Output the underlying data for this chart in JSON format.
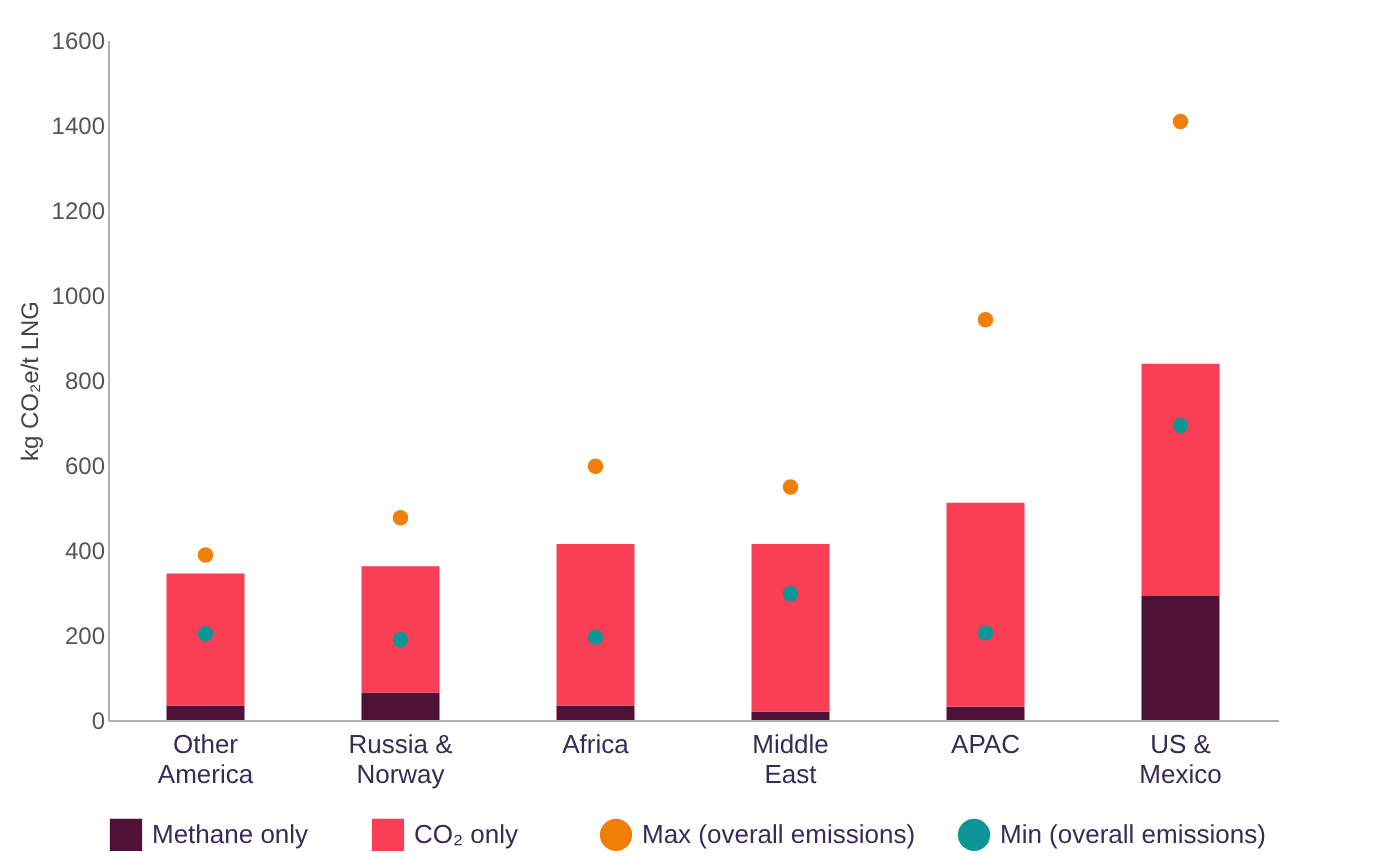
{
  "chart_data": {
    "type": "bar",
    "stacked": true,
    "ylabel": "kg CO₂e/t LNG",
    "categories": [
      "Other America",
      "Russia & Norway",
      "Africa",
      "Middle East",
      "APAC",
      "US & Mexico"
    ],
    "ylim": [
      0,
      1600
    ],
    "yticks": [
      0,
      200,
      400,
      600,
      800,
      1000,
      1200,
      1400,
      1600
    ],
    "grid": false,
    "legend": "bottom",
    "marker": "circle",
    "series": [
      {
        "name": "Methane only",
        "type": "bar",
        "color": "#4f1237",
        "values": [
          34,
          65,
          34,
          20,
          31,
          292
        ]
      },
      {
        "name": "CO₂ only",
        "type": "bar",
        "color": "#f93e55",
        "values": [
          311,
          297,
          380,
          394,
          480,
          546
        ]
      },
      {
        "name": "Max (overall emissions)",
        "type": "scatter",
        "color": "#f07f09",
        "values": [
          388,
          476,
          597,
          548,
          942,
          1408
        ]
      },
      {
        "name": "Min (overall emissions)",
        "type": "scatter",
        "color": "#0e9595",
        "values": [
          203,
          189,
          195,
          297,
          205,
          693
        ]
      }
    ]
  }
}
